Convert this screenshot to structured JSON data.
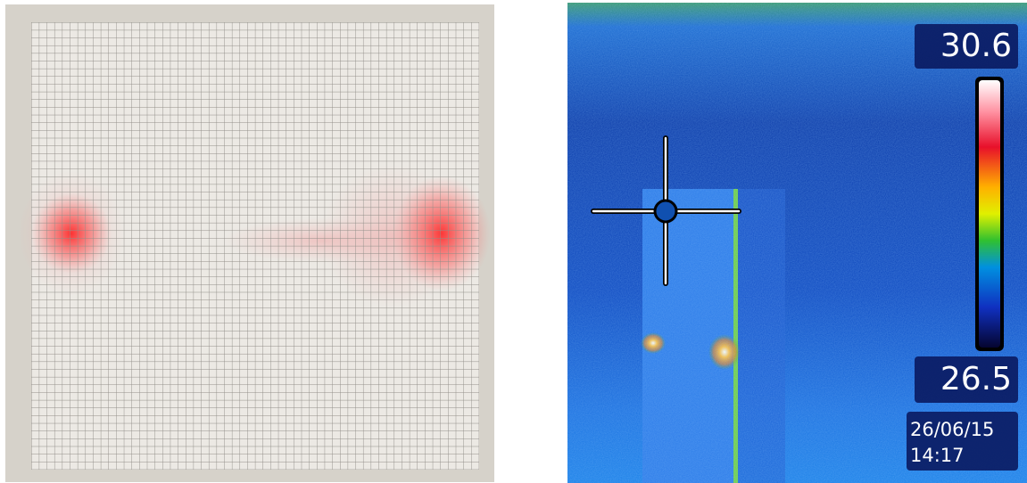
{
  "thermal": {
    "scale_max": "30.6",
    "scale_min": "26.5",
    "date": "26/06/15",
    "time": "14:17"
  }
}
